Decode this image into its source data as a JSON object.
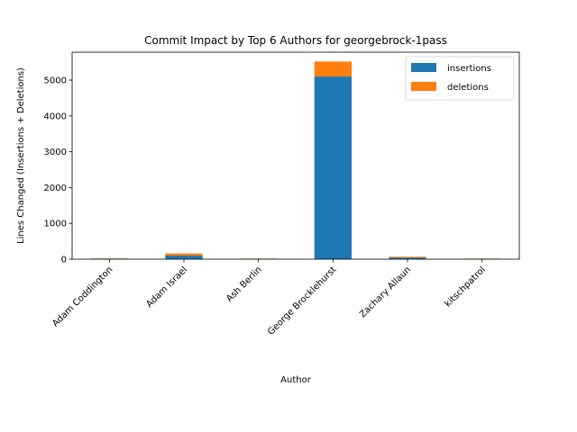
{
  "chart_data": {
    "type": "bar",
    "stacked": true,
    "title": "Commit Impact by Top 6 Authors for georgebrock-1pass",
    "xlabel": "Author",
    "ylabel": "Lines Changed (Insertions + Deletions)",
    "categories": [
      "Adam Coddington",
      "Adam Israel",
      "Ash Berlin",
      "George Brocklehurst",
      "Zachary Allaun",
      "kitschpatrol"
    ],
    "series": [
      {
        "name": "insertions",
        "color": "#1f77b4",
        "values": [
          15,
          100,
          12,
          5100,
          45,
          12
        ]
      },
      {
        "name": "deletions",
        "color": "#ff7f0e",
        "values": [
          5,
          60,
          5,
          420,
          25,
          5
        ]
      }
    ],
    "ylim": [
      0,
      5780
    ],
    "yticks": [
      0,
      1000,
      2000,
      3000,
      4000,
      5000
    ],
    "grid": false,
    "legend_position": "top-right"
  }
}
